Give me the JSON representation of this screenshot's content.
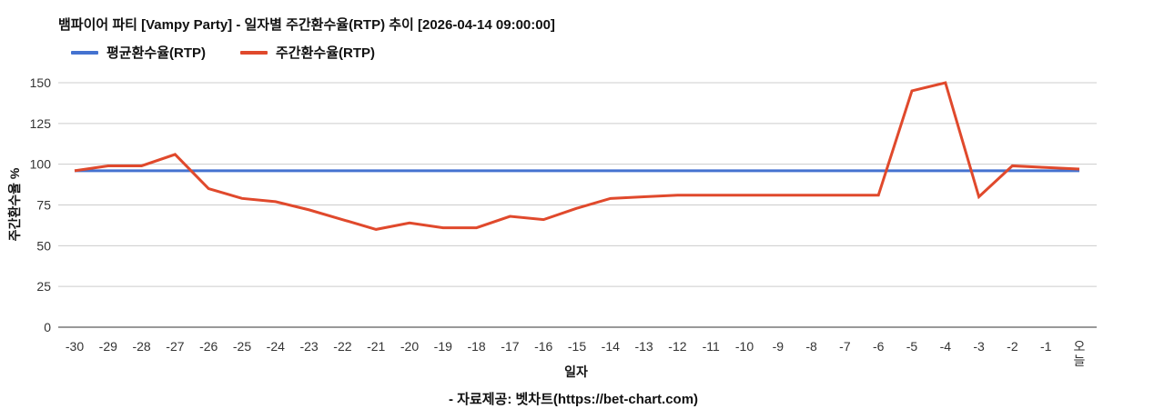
{
  "footer": "- 자료제공: 벳차트(https://bet-chart.com)",
  "chart_data": {
    "type": "line",
    "title": "뱀파이어 파티 [Vampy Party] - 일자별 주간환수율(RTP) 추이 [2026-04-14 09:00:00]",
    "xlabel": "일자",
    "ylabel": "주간환수율 %",
    "ylim": [
      0,
      150
    ],
    "yticks": [
      0,
      25,
      50,
      75,
      100,
      125,
      150
    ],
    "grid": true,
    "legend_position": "top-left",
    "categories": [
      "-30",
      "-29",
      "-28",
      "-27",
      "-26",
      "-25",
      "-24",
      "-23",
      "-22",
      "-21",
      "-20",
      "-19",
      "-18",
      "-17",
      "-16",
      "-15",
      "-14",
      "-13",
      "-12",
      "-11",
      "-10",
      "-9",
      "-8",
      "-7",
      "-6",
      "-5",
      "-4",
      "-3",
      "-2",
      "-1",
      "오늘"
    ],
    "series": [
      {
        "name": "평균환수율(RTP)",
        "color": "#4472d0",
        "values": [
          96,
          96,
          96,
          96,
          96,
          96,
          96,
          96,
          96,
          96,
          96,
          96,
          96,
          96,
          96,
          96,
          96,
          96,
          96,
          96,
          96,
          96,
          96,
          96,
          96,
          96,
          96,
          96,
          96,
          96,
          96
        ]
      },
      {
        "name": "주간환수율(RTP)",
        "color": "#e0492c",
        "values": [
          96,
          99,
          99,
          106,
          85,
          79,
          77,
          72,
          66,
          60,
          64,
          61,
          61,
          68,
          66,
          73,
          79,
          80,
          81,
          81,
          81,
          81,
          81,
          81,
          81,
          145,
          150,
          80,
          99,
          98,
          97
        ]
      }
    ]
  }
}
